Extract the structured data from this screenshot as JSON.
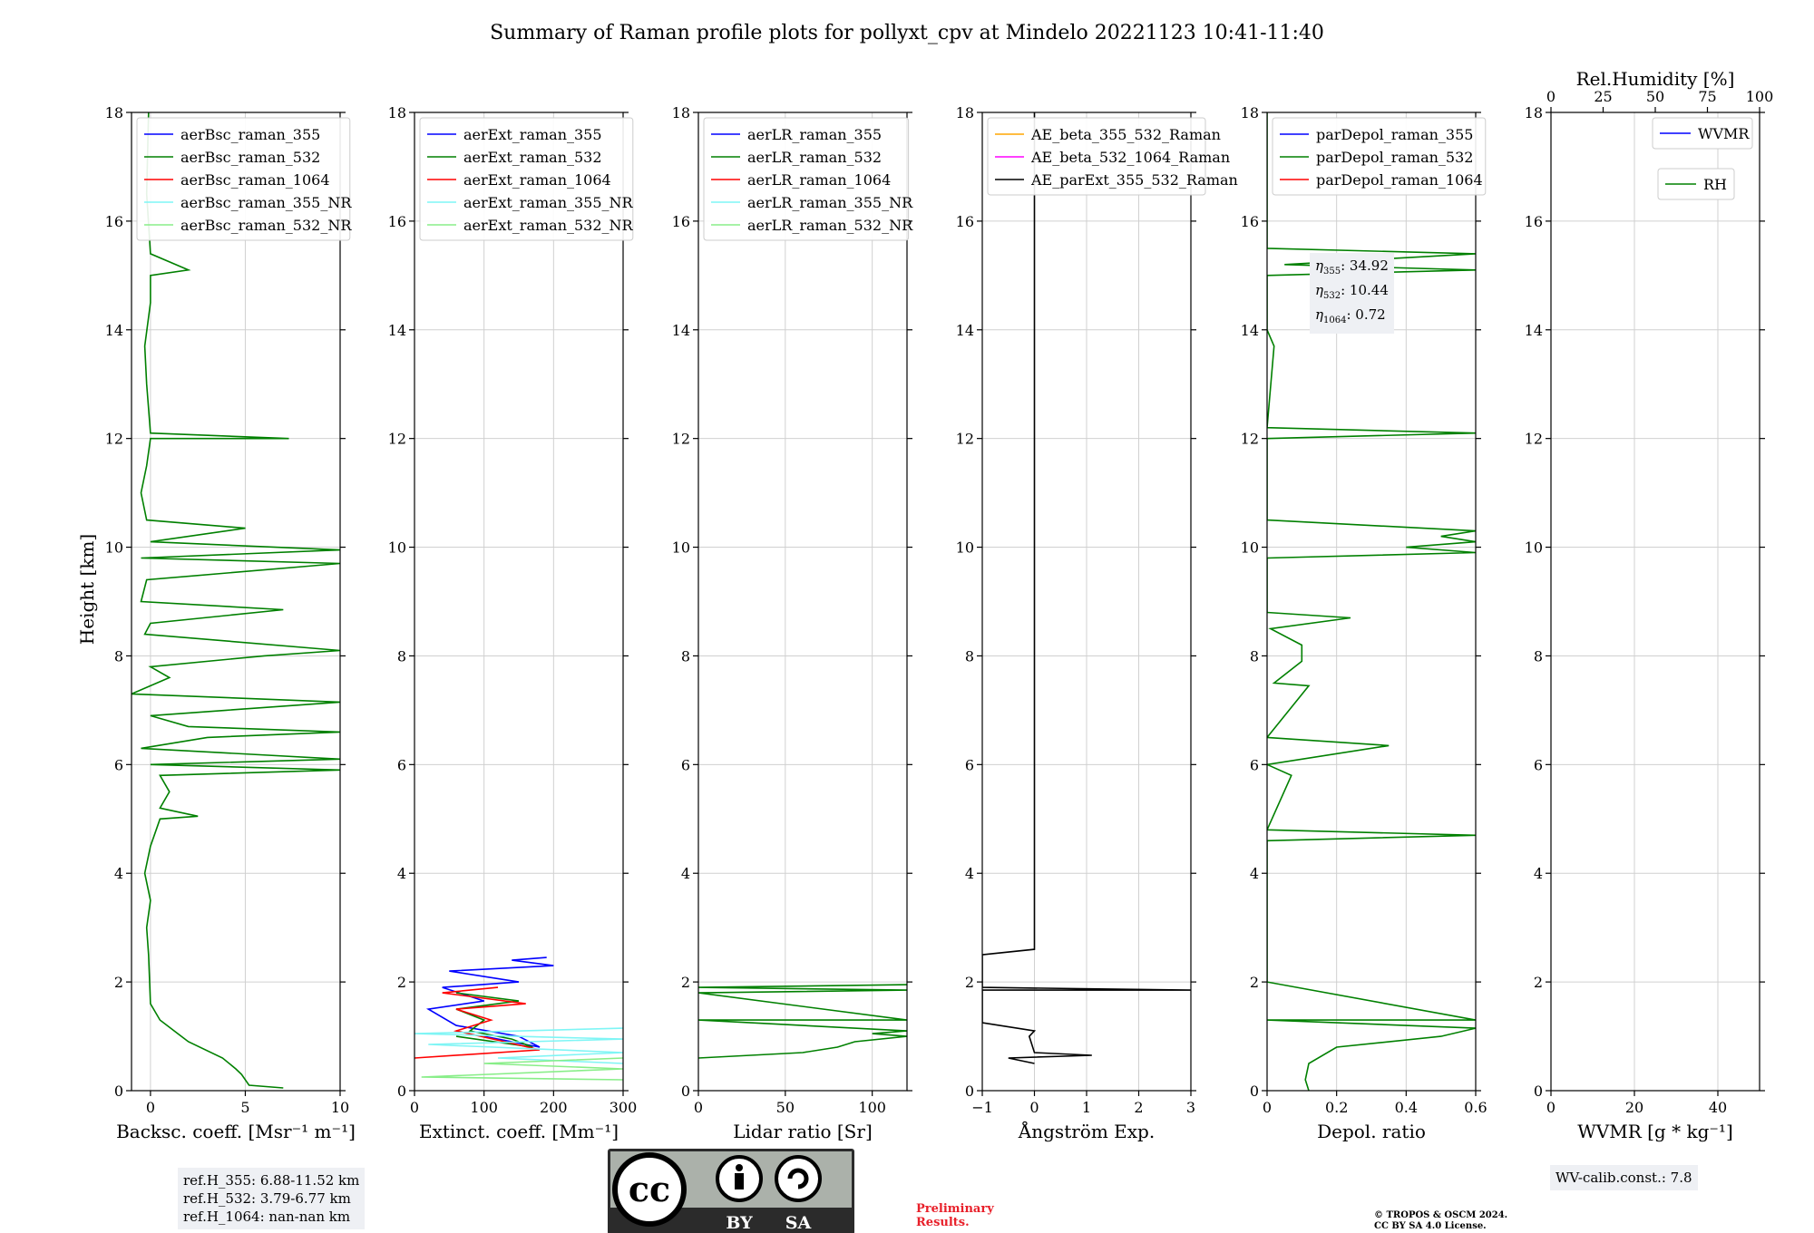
{
  "title": "Summary of Raman profile plots for pollyxt_cpv at Mindelo 20221123 10:41-11:40",
  "ylabel": "Height [km]",
  "colors": {
    "c355": "#0000ff",
    "c532": "#008000",
    "c1064": "#ff0000",
    "c355nr": "#7ff5f5",
    "c532nr": "#88ee88",
    "ae1": "#ffa500",
    "ae2": "#ff00ff",
    "ae3": "#000000"
  },
  "chart_data": [
    {
      "type": "line",
      "xlabel": "Backsc. coeff. [Msr⁻¹ m⁻¹]",
      "xlim": [
        -1,
        10
      ],
      "ylim": [
        0,
        18
      ],
      "xticks": [
        0,
        5,
        10
      ],
      "yticks": [
        0,
        2,
        4,
        6,
        8,
        10,
        12,
        14,
        16,
        18
      ],
      "grid": true,
      "legend_position": "top-left",
      "legend": [
        "aerBsc_raman_355",
        "aerBsc_raman_532",
        "aerBsc_raman_1064",
        "aerBsc_raman_355_NR",
        "aerBsc_raman_532_NR"
      ],
      "series": [
        {
          "name": "aerBsc_raman_532",
          "color": "#008000",
          "points": [
            [
              7,
              0.05
            ],
            [
              5.2,
              0.1
            ],
            [
              4.8,
              0.3
            ],
            [
              4.5,
              0.4
            ],
            [
              3.8,
              0.6
            ],
            [
              2,
              0.9
            ],
            [
              0.5,
              1.3
            ],
            [
              0,
              1.6
            ],
            [
              -0.1,
              2.5
            ],
            [
              -0.2,
              3
            ],
            [
              0,
              3.5
            ],
            [
              -0.3,
              4
            ],
            [
              0,
              4.5
            ],
            [
              0.5,
              5
            ],
            [
              2.5,
              5.05
            ],
            [
              0.5,
              5.2
            ],
            [
              1,
              5.5
            ],
            [
              0.5,
              5.8
            ],
            [
              10,
              5.9
            ],
            [
              0,
              6
            ],
            [
              10,
              6.1
            ],
            [
              -0.5,
              6.3
            ],
            [
              3,
              6.5
            ],
            [
              10,
              6.6
            ],
            [
              2,
              6.7
            ],
            [
              0,
              6.9
            ],
            [
              4,
              7.0
            ],
            [
              10,
              7.15
            ],
            [
              -1,
              7.3
            ],
            [
              1,
              7.6
            ],
            [
              0,
              7.8
            ],
            [
              6,
              8.0
            ],
            [
              10,
              8.1
            ],
            [
              -0.3,
              8.4
            ],
            [
              0,
              8.6
            ],
            [
              7,
              8.85
            ],
            [
              -0.5,
              9
            ],
            [
              -0.2,
              9.4
            ],
            [
              10,
              9.7
            ],
            [
              -0.5,
              9.8
            ],
            [
              10,
              9.95
            ],
            [
              0,
              10.1
            ],
            [
              5,
              10.35
            ],
            [
              -0.2,
              10.5
            ],
            [
              -0.5,
              11
            ],
            [
              -0.2,
              11.5
            ],
            [
              0,
              12
            ],
            [
              7.3,
              12.0
            ],
            [
              0,
              12.1
            ],
            [
              -0.2,
              13
            ],
            [
              -0.3,
              13.7
            ],
            [
              0,
              14.5
            ],
            [
              0,
              15
            ],
            [
              2,
              15.1
            ],
            [
              0,
              15.4
            ],
            [
              -0.2,
              16.5
            ],
            [
              -0.1,
              18
            ]
          ]
        }
      ]
    },
    {
      "type": "line",
      "xlabel": "Extinct. coeff. [Mm⁻¹]",
      "xlim": [
        0,
        300
      ],
      "ylim": [
        0,
        18
      ],
      "xticks": [
        0,
        100,
        200,
        300
      ],
      "yticks": [
        0,
        2,
        4,
        6,
        8,
        10,
        12,
        14,
        16,
        18
      ],
      "grid": true,
      "legend_position": "top-left",
      "legend": [
        "aerExt_raman_355",
        "aerExt_raman_532",
        "aerExt_raman_1064",
        "aerExt_raman_355_NR",
        "aerExt_raman_532_NR"
      ],
      "series": [
        {
          "name": "aerExt_raman_355",
          "color": "#0000ff",
          "points": [
            [
              100,
              1.0
            ],
            [
              180,
              0.8
            ],
            [
              150,
              1.0
            ],
            [
              60,
              1.2
            ],
            [
              20,
              1.5
            ],
            [
              100,
              1.65
            ],
            [
              40,
              1.9
            ],
            [
              150,
              2.0
            ],
            [
              50,
              2.2
            ],
            [
              200,
              2.3
            ],
            [
              140,
              2.4
            ],
            [
              190,
              2.45
            ]
          ]
        },
        {
          "name": "aerExt_raman_532",
          "color": "#008000",
          "points": [
            [
              60,
              1.0
            ],
            [
              170,
              0.8
            ],
            [
              140,
              0.95
            ],
            [
              80,
              1.1
            ],
            [
              100,
              1.3
            ],
            [
              60,
              1.5
            ],
            [
              150,
              1.65
            ],
            [
              60,
              1.8
            ]
          ]
        },
        {
          "name": "aerExt_raman_1064",
          "color": "#ff0000",
          "points": [
            [
              0,
              0.6
            ],
            [
              180,
              0.75
            ],
            [
              130,
              0.9
            ],
            [
              60,
              1.1
            ],
            [
              110,
              1.3
            ],
            [
              60,
              1.5
            ],
            [
              160,
              1.6
            ],
            [
              40,
              1.8
            ],
            [
              120,
              1.9
            ]
          ]
        },
        {
          "name": "aerExt_raman_355_NR",
          "color": "#7ff5f5",
          "points": [
            [
              300,
              0.5
            ],
            [
              120,
              0.6
            ],
            [
              300,
              0.7
            ],
            [
              20,
              0.85
            ],
            [
              300,
              0.95
            ],
            [
              0,
              1.05
            ],
            [
              300,
              1.15
            ]
          ]
        },
        {
          "name": "aerExt_raman_532_NR",
          "color": "#88ee88",
          "points": [
            [
              300,
              0.2
            ],
            [
              10,
              0.25
            ],
            [
              300,
              0.4
            ],
            [
              100,
              0.5
            ],
            [
              300,
              0.6
            ]
          ]
        }
      ]
    },
    {
      "type": "line",
      "xlabel": "Lidar ratio [Sr]",
      "xlim": [
        0,
        120
      ],
      "ylim": [
        0,
        18
      ],
      "xticks": [
        0,
        50,
        100
      ],
      "yticks": [
        0,
        2,
        4,
        6,
        8,
        10,
        12,
        14,
        16,
        18
      ],
      "grid": true,
      "legend_position": "top-left",
      "legend": [
        "aerLR_raman_355",
        "aerLR_raman_532",
        "aerLR_raman_1064",
        "aerLR_raman_355_NR",
        "aerLR_raman_532_NR"
      ],
      "series": [
        {
          "name": "aerLR_raman_532",
          "color": "#008000",
          "points": [
            [
              0,
              0.6
            ],
            [
              60,
              0.7
            ],
            [
              80,
              0.8
            ],
            [
              90,
              0.9
            ],
            [
              120,
              1.0
            ],
            [
              100,
              1.05
            ],
            [
              120,
              1.1
            ],
            [
              0,
              1.3
            ],
            [
              120,
              1.3
            ],
            [
              0,
              1.8
            ],
            [
              120,
              1.85
            ],
            [
              0,
              1.9
            ],
            [
              120,
              1.95
            ]
          ]
        }
      ]
    },
    {
      "type": "line",
      "xlabel": "Ångström Exp.",
      "xlim": [
        -1,
        3
      ],
      "ylim": [
        0,
        18
      ],
      "xticks": [
        -1,
        0,
        1,
        2,
        3
      ],
      "yticks": [
        0,
        2,
        4,
        6,
        8,
        10,
        12,
        14,
        16,
        18
      ],
      "grid": true,
      "legend_position": "top-left",
      "legend": [
        "AE_beta_355_532_Raman",
        "AE_beta_532_1064_Raman",
        "AE_parExt_355_532_Raman"
      ],
      "series": [
        {
          "name": "AE_parExt_355_532_Raman",
          "color": "#000000",
          "points": [
            [
              0,
              0.5
            ],
            [
              -0.5,
              0.6
            ],
            [
              1.1,
              0.65
            ],
            [
              0,
              0.7
            ],
            [
              -0.1,
              1.0
            ],
            [
              0,
              1.1
            ],
            [
              -1,
              1.25
            ],
            [
              -1,
              1.85
            ],
            [
              3,
              1.85
            ],
            [
              -1,
              1.9
            ],
            [
              -1,
              2.5
            ],
            [
              0,
              2.6
            ],
            [
              0,
              18
            ]
          ]
        }
      ]
    },
    {
      "type": "line",
      "xlabel": "Depol. ratio",
      "xlim": [
        0,
        0.6
      ],
      "ylim": [
        0,
        18
      ],
      "xticks": [
        0,
        0.2,
        0.4,
        0.6
      ],
      "yticks": [
        0,
        2,
        4,
        6,
        8,
        10,
        12,
        14,
        16,
        18
      ],
      "grid": true,
      "legend_position": "top-left",
      "legend": [
        "parDepol_raman_355",
        "parDepol_raman_532",
        "parDepol_raman_1064"
      ],
      "series": [
        {
          "name": "parDepol_raman_532",
          "color": "#008000",
          "points": [
            [
              0.12,
              0
            ],
            [
              0.11,
              0.2
            ],
            [
              0.12,
              0.5
            ],
            [
              0.2,
              0.8
            ],
            [
              0.5,
              1.0
            ],
            [
              0.6,
              1.15
            ],
            [
              0,
              1.3
            ],
            [
              0.6,
              1.3
            ],
            [
              0,
              2
            ],
            [
              0,
              4.6
            ],
            [
              0.6,
              4.7
            ],
            [
              0,
              4.8
            ],
            [
              0.07,
              5.8
            ],
            [
              0,
              6
            ],
            [
              0.35,
              6.35
            ],
            [
              0,
              6.5
            ],
            [
              0.12,
              7.45
            ],
            [
              0.02,
              7.5
            ],
            [
              0.1,
              7.9
            ],
            [
              0.1,
              8.2
            ],
            [
              0.01,
              8.5
            ],
            [
              0.24,
              8.7
            ],
            [
              0,
              8.8
            ],
            [
              0,
              9.8
            ],
            [
              0.6,
              9.9
            ],
            [
              0.4,
              10.0
            ],
            [
              0.6,
              10.1
            ],
            [
              0.5,
              10.2
            ],
            [
              0.6,
              10.3
            ],
            [
              0,
              10.5
            ],
            [
              0,
              12
            ],
            [
              0.6,
              12.1
            ],
            [
              0,
              12.2
            ],
            [
              0.02,
              13.7
            ],
            [
              0,
              14
            ],
            [
              0,
              15
            ],
            [
              0.6,
              15.1
            ],
            [
              0.05,
              15.2
            ],
            [
              0.6,
              15.4
            ],
            [
              0,
              15.5
            ],
            [
              0,
              18
            ]
          ]
        }
      ]
    },
    {
      "type": "line",
      "xlabel": "WVMR [g * kg⁻¹]",
      "xlabel_top": "Rel.Humidity [%]",
      "xlim": [
        0,
        50
      ],
      "ylim": [
        0,
        18
      ],
      "xticks": [
        0,
        20,
        40
      ],
      "xticks_top": [
        0,
        25,
        50,
        75,
        100
      ],
      "yticks": [
        0,
        2,
        4,
        6,
        8,
        10,
        12,
        14,
        16,
        18
      ],
      "grid": true,
      "legend_position": "top-right",
      "legend": [
        "WVMR",
        "RH"
      ],
      "series": []
    }
  ],
  "annotations": {
    "eta": {
      "l1": ": 34.92",
      "l2": ": 10.44",
      "l3": ": 0.72"
    },
    "refh": {
      "l1": "ref.H_355: 6.88-11.52 km",
      "l2": "ref.H_532: 3.79-6.77 km",
      "l3": "ref.H_1064: nan-nan km"
    },
    "wvcalib": "WV-calib.const.: 7.8",
    "prelim1": "Preliminary",
    "prelim2": "Results.",
    "copy1": "© TROPOS & OSCM 2024.",
    "copy2": "CC BY SA 4.0 License.",
    "license": {
      "by": "BY",
      "sa": "SA",
      "cc": "cc"
    }
  }
}
